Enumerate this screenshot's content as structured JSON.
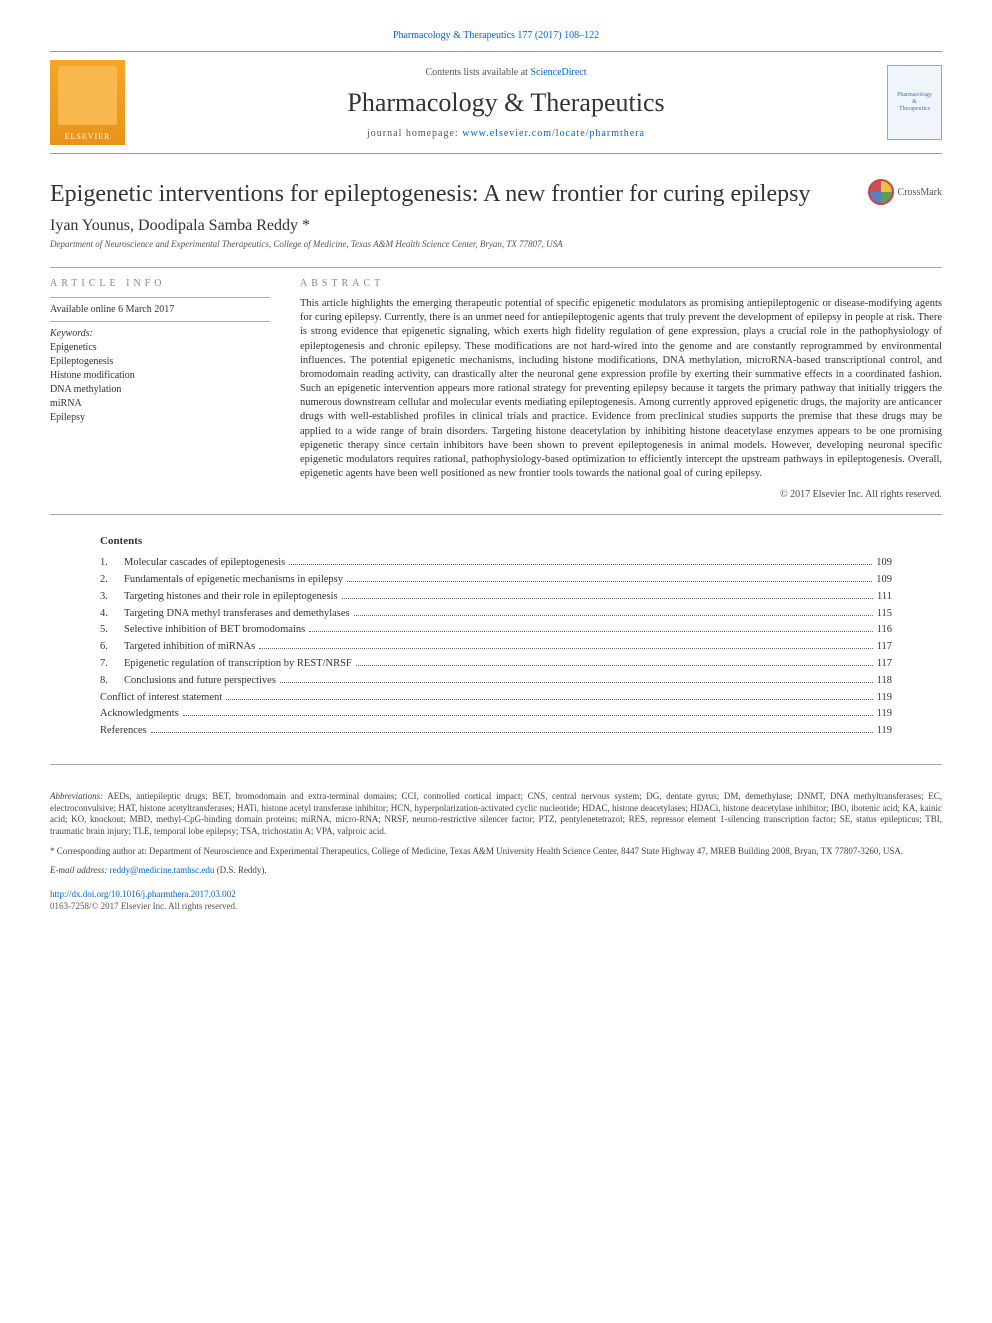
{
  "citation": "Pharmacology & Therapeutics 177 (2017) 108–122",
  "header": {
    "contents_prefix": "Contents lists available at ",
    "contents_link": "ScienceDirect",
    "journal": "Pharmacology & Therapeutics",
    "homepage_prefix": "journal homepage: ",
    "homepage_url": "www.elsevier.com/locate/pharmthera",
    "elsevier_label": "ELSEVIER",
    "cover_l1": "Pharmacology",
    "cover_l2": "&",
    "cover_l3": "Therapeutics"
  },
  "article": {
    "title": "Epigenetic interventions for epileptogenesis: A new frontier for curing epilepsy",
    "crossmark": "CrossMark",
    "authors": "Iyan Younus, Doodipala Samba Reddy *",
    "affiliation": "Department of Neuroscience and Experimental Therapeutics, College of Medicine, Texas A&M Health Science Center, Bryan, TX 77807, USA"
  },
  "info": {
    "label": "article info",
    "available": "Available online 6 March 2017",
    "kw_head": "Keywords:",
    "keywords": [
      "Epigenetics",
      "Epileptogenesis",
      "Histone modification",
      "DNA methylation",
      "miRNA",
      "Epilepsy"
    ]
  },
  "abstract": {
    "label": "abstract",
    "text": "This article highlights the emerging therapeutic potential of specific epigenetic modulators as promising antiepileptogenic or disease-modifying agents for curing epilepsy. Currently, there is an unmet need for antiepileptogenic agents that truly prevent the development of epilepsy in people at risk. There is strong evidence that epigenetic signaling, which exerts high fidelity regulation of gene expression, plays a crucial role in the pathophysiology of epileptogenesis and chronic epilepsy. These modifications are not hard-wired into the genome and are constantly reprogrammed by environmental influences. The potential epigenetic mechanisms, including histone modifications, DNA methylation, microRNA-based transcriptional control, and bromodomain reading activity, can drastically alter the neuronal gene expression profile by exerting their summative effects in a coordinated fashion. Such an epigenetic intervention appears more rational strategy for preventing epilepsy because it targets the primary pathway that initially triggers the numerous downstream cellular and molecular events mediating epileptogenesis. Among currently approved epigenetic drugs, the majority are anticancer drugs with well-established profiles in clinical trials and practice. Evidence from preclinical studies supports the premise that these drugs may be applied to a wide range of brain disorders. Targeting histone deacetylation by inhibiting histone deacetylase enzymes appears to be one promising epigenetic therapy since certain inhibitors have been shown to prevent epileptogenesis in animal models. However, developing neuronal specific epigenetic modulators requires rational, pathophysiology-based optimization to efficiently intercept the upstream pathways in epileptogenesis. Overall, epigenetic agents have been well positioned as new frontier tools towards the national goal of curing epilepsy.",
    "copyright": "© 2017 Elsevier Inc. All rights reserved."
  },
  "toc": {
    "head": "Contents",
    "items": [
      {
        "n": "1.",
        "t": "Molecular cascades of epileptogenesis",
        "p": "109"
      },
      {
        "n": "2.",
        "t": "Fundamentals of epigenetic mechanisms in epilepsy",
        "p": "109"
      },
      {
        "n": "3.",
        "t": "Targeting histones and their role in epileptogenesis",
        "p": "111"
      },
      {
        "n": "4.",
        "t": "Targeting DNA methyl transferases and demethylases",
        "p": "115"
      },
      {
        "n": "5.",
        "t": "Selective inhibition of BET bromodomains",
        "p": "116"
      },
      {
        "n": "6.",
        "t": "Targeted inhibition of miRNAs",
        "p": "117"
      },
      {
        "n": "7.",
        "t": "Epigenetic regulation of transcription by REST/NRSF",
        "p": "117"
      },
      {
        "n": "8.",
        "t": "Conclusions and future perspectives",
        "p": "118"
      },
      {
        "n": "",
        "t": "Conflict of interest statement",
        "p": "119"
      },
      {
        "n": "",
        "t": "Acknowledgments",
        "p": "119"
      },
      {
        "n": "",
        "t": "References",
        "p": "119"
      }
    ]
  },
  "footer": {
    "abbrev_label": "Abbreviations:",
    "abbrev_text": " AEDs, antiepileptic drugs; BET, bromodomain and extra-terminal domains; CCI, controlled cortical impact; CNS, central nervous system; DG, dentate gyrus; DM, demethylase; DNMT, DNA methyltransferases; EC, electroconvulsive; HAT, histone acetyltransferases; HATi, histone acetyl transferase inhibitor; HCN, hyperpolarization-activated cyclic nucleotide; HDAC, histone deacetylases; HDACi, histone deacetylase inhibitor; IBO, ibotenic acid; KA, kainic acid; KO, knockout; MBD, methyl-CpG-binding domain proteins; miRNA, micro-RNA; NRSF, neuron-restrictive silencer factor; PTZ, pentylenetetrazol; RES, repressor element 1-silencing transcription factor; SE, status epilepticus; TBI, traumatic brain injury; TLE, temporal lobe epilepsy; TSA, trichostatin A; VPA, valproic acid.",
    "corr_label": "* Corresponding author at: ",
    "corr_text": "Department of Neuroscience and Experimental Therapeutics, College of Medicine, Texas A&M University Health Science Center, 8447 State Highway 47, MREB Building 2008, Bryan, TX 77807-3260, USA.",
    "email_label": "E-mail address: ",
    "email": "reddy@medicine.tamhsc.edu",
    "email_suffix": " (D.S. Reddy).",
    "doi": "http://dx.doi.org/10.1016/j.pharmthera.2017.03.002",
    "issn_copy": "0163-7258/© 2017 Elsevier Inc. All rights reserved."
  },
  "colors": {
    "link": "#0066cc",
    "text": "#333333",
    "rule": "#aaaaaa",
    "elsevier_orange": "#f5a623"
  }
}
